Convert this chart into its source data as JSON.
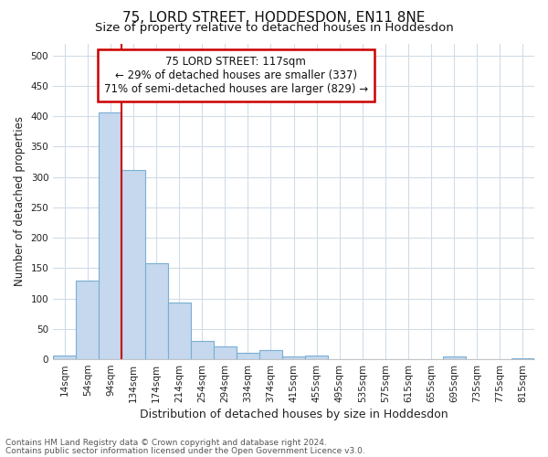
{
  "title1": "75, LORD STREET, HODDESDON, EN11 8NE",
  "title2": "Size of property relative to detached houses in Hoddesdon",
  "xlabel": "Distribution of detached houses by size in Hoddesdon",
  "ylabel": "Number of detached properties",
  "categories": [
    "14sqm",
    "54sqm",
    "94sqm",
    "134sqm",
    "174sqm",
    "214sqm",
    "254sqm",
    "294sqm",
    "334sqm",
    "374sqm",
    "415sqm",
    "455sqm",
    "495sqm",
    "535sqm",
    "575sqm",
    "615sqm",
    "655sqm",
    "695sqm",
    "735sqm",
    "775sqm",
    "815sqm"
  ],
  "values": [
    6,
    130,
    407,
    312,
    158,
    93,
    30,
    21,
    10,
    15,
    5,
    6,
    0,
    0,
    0,
    0,
    0,
    4,
    0,
    0,
    2
  ],
  "bar_color": "#c5d8ed",
  "bar_edgecolor": "#7aafd4",
  "bar_width": 1.0,
  "ylim": [
    0,
    520
  ],
  "yticks": [
    0,
    50,
    100,
    150,
    200,
    250,
    300,
    350,
    400,
    450,
    500
  ],
  "annotation_text": "75 LORD STREET: 117sqm\n← 29% of detached houses are smaller (337)\n71% of semi-detached houses are larger (829) →",
  "annotation_box_facecolor": "#ffffff",
  "annotation_box_edgecolor": "#cc0000",
  "footnote1": "Contains HM Land Registry data © Crown copyright and database right 2024.",
  "footnote2": "Contains public sector information licensed under the Open Government Licence v3.0.",
  "plot_bg_color": "#ffffff",
  "fig_bg_color": "#ffffff",
  "grid_color": "#d0dce8",
  "title1_fontsize": 11,
  "title2_fontsize": 9.5,
  "xlabel_fontsize": 9,
  "ylabel_fontsize": 8.5,
  "tick_fontsize": 7.5,
  "annotation_fontsize": 8.5,
  "footnote_fontsize": 6.5
}
